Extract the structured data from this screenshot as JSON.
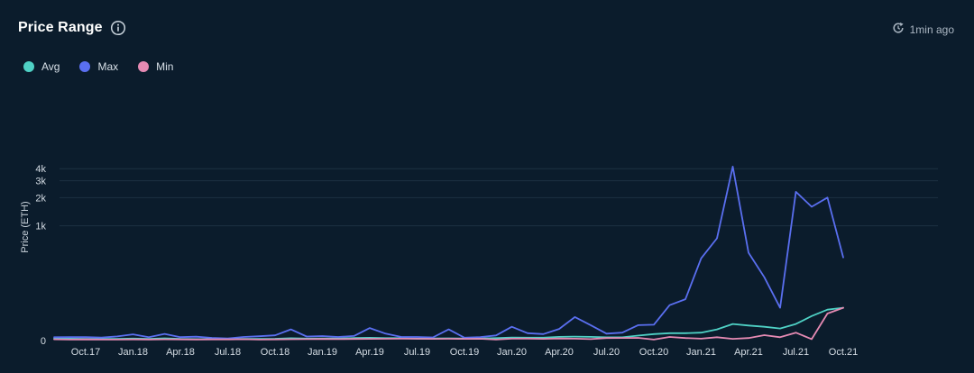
{
  "header": {
    "title": "Price Range",
    "updated": "1min ago"
  },
  "icons": {
    "info": "info-icon",
    "refresh": "refresh-clock-icon"
  },
  "colors": {
    "background": "#0b1c2c",
    "grid": "#1c3142",
    "avg": "#4fd1c5",
    "max": "#5a6ff0",
    "min": "#e58ab3"
  },
  "chart_data": {
    "type": "line",
    "title": "Price Range",
    "ylabel": "Price (ETH)",
    "xlabel": "",
    "yscale": "symlog",
    "y_ticks": [
      {
        "value": 0,
        "label": "0"
      },
      {
        "value": 1000,
        "label": "1k"
      },
      {
        "value": 2000,
        "label": "2k"
      },
      {
        "value": 3000,
        "label": "3k"
      },
      {
        "value": 4000,
        "label": "4k"
      }
    ],
    "x_ticks": [
      "Oct.17",
      "Jan.18",
      "Apr.18",
      "Jul.18",
      "Oct.18",
      "Jan.19",
      "Apr.19",
      "Jul.19",
      "Oct.19",
      "Jan.20",
      "Apr.20",
      "Jul.20",
      "Oct.20",
      "Jan.21",
      "Apr.21",
      "Jul.21",
      "Oct.21"
    ],
    "x": [
      "Aug.17",
      "Sep.17",
      "Oct.17",
      "Nov.17",
      "Dec.17",
      "Jan.18",
      "Feb.18",
      "Mar.18",
      "Apr.18",
      "May.18",
      "Jun.18",
      "Jul.18",
      "Aug.18",
      "Sep.18",
      "Oct.18",
      "Nov.18",
      "Dec.18",
      "Jan.19",
      "Feb.19",
      "Mar.19",
      "Apr.19",
      "May.19",
      "Jun.19",
      "Jul.19",
      "Aug.19",
      "Sep.19",
      "Oct.19",
      "Nov.19",
      "Dec.19",
      "Jan.20",
      "Feb.20",
      "Mar.20",
      "Apr.20",
      "May.20",
      "Jun.20",
      "Jul.20",
      "Aug.20",
      "Sep.20",
      "Oct.20",
      "Nov.20",
      "Dec.20",
      "Jan.21",
      "Feb.21",
      "Mar.21",
      "Apr.21",
      "May.21",
      "Jun.21",
      "Jul.21",
      "Aug.21",
      "Sep.21",
      "Oct.21"
    ],
    "legend_position": "top-left",
    "grid": true,
    "series": [
      {
        "name": "Avg",
        "color": "#4fd1c5",
        "values": [
          3.5,
          3.3,
          3.0,
          2.8,
          2.9,
          3.5,
          2.9,
          4.0,
          2.9,
          2.6,
          2.6,
          2.7,
          3.0,
          3.0,
          3.2,
          4.2,
          3.5,
          3.7,
          3.7,
          4.5,
          5.0,
          4.3,
          4.3,
          3.5,
          3.7,
          4.0,
          3.7,
          3.6,
          4.3,
          5.5,
          5.1,
          5.1,
          6.6,
          7.1,
          6.6,
          5.8,
          5.8,
          9,
          12,
          14,
          14,
          15,
          22,
          35,
          31,
          28,
          24,
          35,
          57,
          78,
          85
        ]
      },
      {
        "name": "Max",
        "color": "#5a6ff0",
        "values": [
          6.0,
          6.2,
          6.1,
          5.3,
          7.5,
          11.5,
          6.0,
          12.5,
          6.2,
          7.0,
          4.8,
          3.6,
          6.5,
          7.9,
          9.6,
          22,
          7.4,
          8.2,
          6.5,
          8.4,
          25,
          13,
          6.5,
          6.5,
          5.6,
          22,
          5.2,
          6.4,
          9.5,
          28,
          14,
          12,
          23,
          54,
          32,
          13,
          15,
          32,
          33,
          95,
          120,
          430,
          730,
          4200,
          500,
          250,
          85,
          2300,
          1600,
          2000,
          440
        ]
      },
      {
        "name": "Min",
        "color": "#e58ab3",
        "values": [
          2.2,
          1.7,
          2.0,
          1.8,
          1.7,
          2.0,
          1.9,
          2.2,
          2.1,
          1.9,
          2.0,
          2.0,
          2.4,
          1.7,
          2.0,
          2.4,
          2.5,
          2.8,
          2.6,
          2.9,
          3.0,
          3.1,
          3.3,
          3.2,
          3.0,
          3.1,
          3.0,
          3.2,
          1.8,
          3.4,
          3.5,
          3.0,
          3.7,
          3.3,
          2.6,
          4.5,
          4.6,
          4.8,
          1.8,
          6.5,
          4.5,
          3.3,
          6.0,
          3.0,
          4.5,
          10,
          6.0,
          15,
          2.5,
          65,
          85
        ]
      }
    ]
  }
}
